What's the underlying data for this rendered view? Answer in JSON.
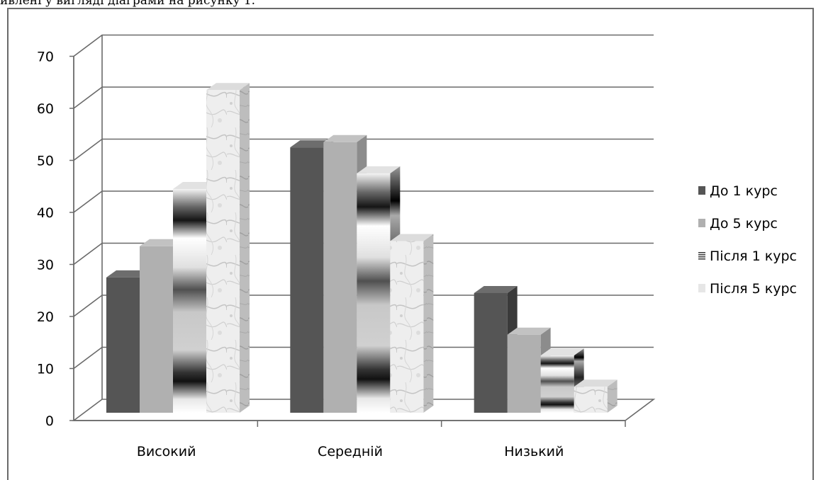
{
  "caption": "ивлені у вигляді діаграми на рисунку 1.",
  "chart_data": {
    "type": "bar",
    "categories": [
      "Високий",
      "Середній",
      "Низький"
    ],
    "series": [
      {
        "name": "До 1 курс",
        "values": [
          26,
          51,
          23
        ]
      },
      {
        "name": "До 5 курс",
        "values": [
          32,
          52,
          15
        ]
      },
      {
        "name": "Після 1 курс",
        "values": [
          43,
          46,
          11
        ]
      },
      {
        "name": "Після 5 курс",
        "values": [
          62,
          33,
          5
        ]
      }
    ],
    "ylim": [
      0,
      70
    ],
    "yticks": [
      "0",
      "10",
      "20",
      "30",
      "40",
      "50",
      "60",
      "70"
    ],
    "grid": true,
    "legend": "right",
    "three_d": true
  }
}
